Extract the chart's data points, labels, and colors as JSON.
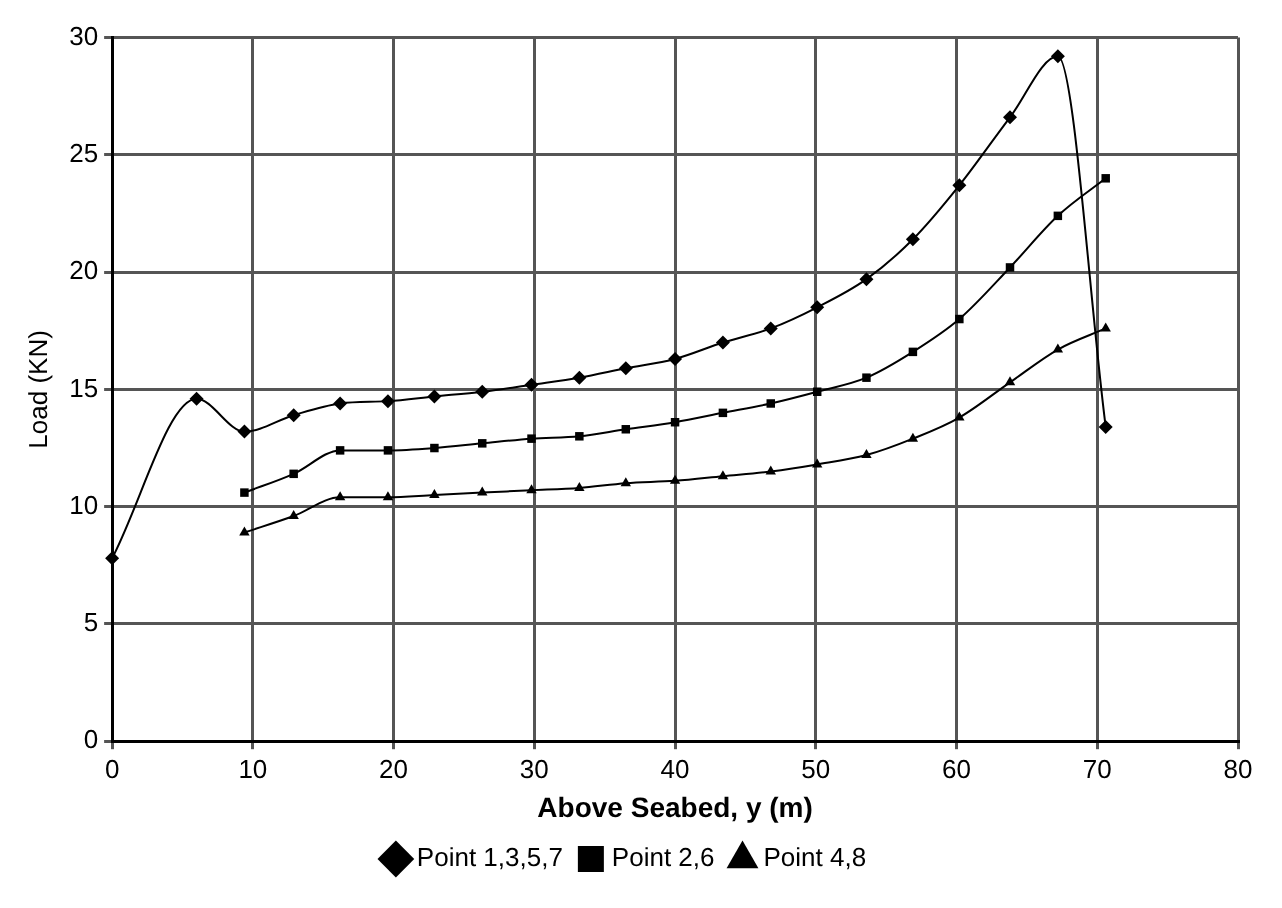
{
  "chart_data": {
    "type": "line",
    "xlabel": "Above Seabed, y (m)",
    "ylabel": "Load (KN)",
    "xlim": [
      0,
      80
    ],
    "xticks": [
      0,
      10,
      20,
      30,
      40,
      50,
      60,
      70,
      80
    ],
    "ylim": [
      0,
      30
    ],
    "yticks": [
      0,
      5,
      10,
      15,
      20,
      25,
      30
    ],
    "grid": true,
    "legend": "bottom",
    "series": [
      {
        "name": "Point 1,3,5,7",
        "color": "#000000",
        "marker": "diamond",
        "x": [
          0,
          6,
          9.4,
          12.9,
          16.2,
          19.6,
          22.9,
          26.3,
          29.8,
          33.2,
          36.5,
          40,
          43.4,
          46.8,
          50.1,
          53.6,
          56.9,
          60.2,
          63.8,
          67.2,
          70.6
        ],
        "values": [
          7.8,
          14.6,
          13.2,
          13.9,
          14.4,
          14.5,
          14.7,
          14.9,
          15.2,
          15.5,
          15.9,
          16.3,
          17.0,
          17.6,
          18.5,
          19.7,
          21.4,
          23.7,
          26.6,
          29.2,
          13.4
        ]
      },
      {
        "name": "Point 2,6",
        "color": "#000000",
        "marker": "square",
        "x": [
          9.4,
          12.9,
          16.2,
          19.6,
          22.9,
          26.3,
          29.8,
          33.2,
          36.5,
          40,
          43.4,
          46.8,
          50.1,
          53.6,
          56.9,
          60.2,
          63.8,
          67.2,
          70.6
        ],
        "values": [
          10.6,
          11.4,
          12.4,
          12.4,
          12.5,
          12.7,
          12.9,
          13.0,
          13.3,
          13.6,
          14.0,
          14.4,
          14.9,
          15.5,
          16.6,
          18.0,
          20.2,
          22.4,
          24.0
        ]
      },
      {
        "name": "Point 4,8",
        "color": "#000000",
        "marker": "triangle",
        "x": [
          9.4,
          12.9,
          16.2,
          19.6,
          22.9,
          26.3,
          29.8,
          33.2,
          36.5,
          40,
          43.4,
          46.8,
          50.1,
          53.6,
          56.9,
          60.2,
          63.8,
          67.2,
          70.6
        ],
        "values": [
          8.9,
          9.6,
          10.4,
          10.4,
          10.5,
          10.6,
          10.7,
          10.8,
          11.0,
          11.1,
          11.3,
          11.5,
          11.8,
          12.2,
          12.9,
          13.8,
          15.3,
          16.7,
          17.6
        ]
      }
    ]
  }
}
